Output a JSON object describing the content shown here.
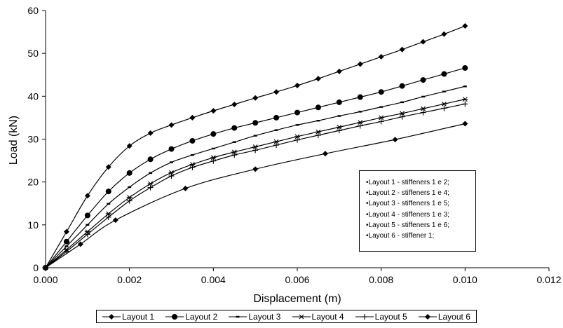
{
  "chart_data": {
    "type": "line",
    "title": "",
    "xlabel": "Displacement (m)",
    "ylabel": "Load (kN)",
    "xlim": [
      0,
      0.012
    ],
    "ylim": [
      0,
      60
    ],
    "x_ticks": [
      "0.000",
      "0.002",
      "0.004",
      "0.006",
      "0.008",
      "0.010",
      "0.012"
    ],
    "y_ticks": [
      "0",
      "10",
      "20",
      "30",
      "40",
      "50",
      "60"
    ],
    "grid": false,
    "legend_position": "bottom",
    "series": [
      {
        "name": "Layout 1",
        "marker": "diamond",
        "x": [
          0,
          0.0005,
          0.001,
          0.0015,
          0.002,
          0.0025,
          0.003,
          0.0035,
          0.004,
          0.0045,
          0.005,
          0.0055,
          0.006,
          0.0065,
          0.007,
          0.0075,
          0.008,
          0.0085,
          0.009,
          0.0095,
          0.01
        ],
        "y": [
          0,
          8.4,
          16.8,
          23.5,
          28.4,
          31.4,
          33.3,
          35.0,
          36.6,
          38.1,
          39.6,
          41.0,
          42.5,
          44.1,
          45.8,
          47.5,
          49.2,
          50.9,
          52.7,
          54.5,
          56.4
        ]
      },
      {
        "name": "Layout 2",
        "marker": "circle",
        "x": [
          0,
          0.0005,
          0.001,
          0.0015,
          0.002,
          0.0025,
          0.003,
          0.0035,
          0.004,
          0.0045,
          0.005,
          0.0055,
          0.006,
          0.0065,
          0.007,
          0.0075,
          0.008,
          0.0085,
          0.009,
          0.0095,
          0.01
        ],
        "y": [
          0,
          6.1,
          12.2,
          17.8,
          22.1,
          25.3,
          27.7,
          29.6,
          31.2,
          32.6,
          33.8,
          35.0,
          36.2,
          37.4,
          38.6,
          39.8,
          41.0,
          42.4,
          43.8,
          45.2,
          46.6
        ]
      },
      {
        "name": "Layout 3",
        "marker": "dash",
        "x": [
          0,
          0.0005,
          0.001,
          0.0015,
          0.002,
          0.0025,
          0.003,
          0.0035,
          0.004,
          0.0045,
          0.005,
          0.0055,
          0.006,
          0.0065,
          0.007,
          0.0075,
          0.008,
          0.0085,
          0.009,
          0.0095,
          0.01
        ],
        "y": [
          0,
          5.0,
          10.0,
          14.9,
          18.8,
          22.1,
          24.6,
          26.3,
          27.8,
          29.3,
          30.8,
          32.1,
          33.3,
          34.3,
          35.4,
          36.4,
          37.5,
          38.6,
          39.9,
          41.1,
          42.3
        ]
      },
      {
        "name": "Layout 4",
        "marker": "asterisk",
        "x": [
          0,
          0.0005,
          0.001,
          0.0015,
          0.002,
          0.0025,
          0.003,
          0.0035,
          0.004,
          0.0045,
          0.005,
          0.0055,
          0.006,
          0.0065,
          0.007,
          0.0075,
          0.008,
          0.0085,
          0.009,
          0.0095,
          0.01
        ],
        "y": [
          0,
          4.2,
          8.4,
          12.6,
          16.4,
          19.6,
          22.2,
          24.1,
          25.7,
          27.0,
          28.2,
          29.4,
          30.6,
          31.7,
          32.8,
          33.9,
          35.0,
          36.0,
          37.1,
          38.2,
          39.3
        ]
      },
      {
        "name": "Layout 5",
        "marker": "plus",
        "x": [
          0,
          0.0005,
          0.001,
          0.0015,
          0.002,
          0.0025,
          0.003,
          0.0035,
          0.004,
          0.0045,
          0.005,
          0.0055,
          0.006,
          0.0065,
          0.007,
          0.0075,
          0.008,
          0.0085,
          0.009,
          0.0095,
          0.01
        ],
        "y": [
          0,
          3.8,
          7.8,
          11.8,
          15.6,
          18.7,
          21.4,
          23.4,
          24.9,
          26.3,
          27.4,
          28.6,
          29.8,
          30.9,
          32.0,
          33.1,
          34.1,
          35.2,
          36.2,
          37.2,
          38.2
        ]
      },
      {
        "name": "Layout 6",
        "marker": "diamond",
        "x": [
          0,
          0.000833,
          0.001667,
          0.003333,
          0.005,
          0.006667,
          0.008333,
          0.01
        ],
        "y": [
          0,
          5.5,
          11.1,
          18.5,
          23.0,
          26.6,
          29.9,
          33.6
        ]
      }
    ]
  },
  "notes": [
    "•Layout 1 - stiffeners 1 e 2;",
    "•Layout 2 - stiffeners 1 e 4;",
    "•Layout 3 - stiffeners 1 e 5;",
    "•Layout 4 - stiffeners 1 e 3;",
    "•Layout 5 - stiffeners 1 e 6;",
    "•Layout 6 - stiffener 1;"
  ],
  "colors": {
    "line": "#000000",
    "background": "#ffffff"
  }
}
